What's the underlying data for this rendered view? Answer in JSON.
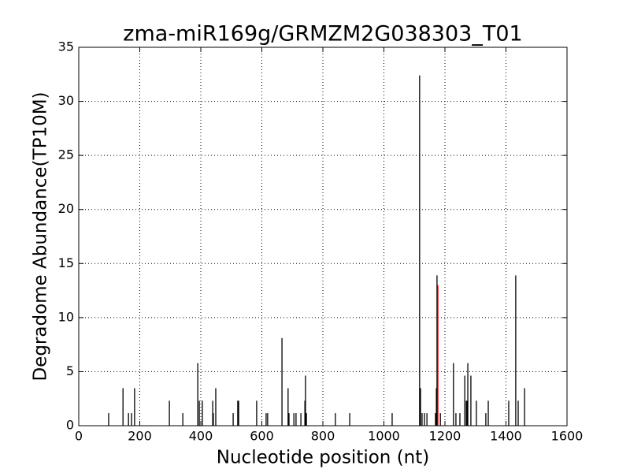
{
  "chart_data": {
    "type": "stem",
    "title": "zma-miR169g/GRMZM2G038303_T01",
    "x_label": "Nucleotide position (nt)",
    "y_label": "Degradome Abundance(TP10M)",
    "xlim": [
      0,
      1600
    ],
    "xticks": [
      0,
      200,
      400,
      600,
      800,
      1000,
      1200,
      1400,
      1600
    ],
    "ylim": [
      0,
      35
    ],
    "yticks": [
      0,
      5,
      10,
      15,
      20,
      25,
      30,
      35
    ],
    "grid": true,
    "series": [
      {
        "color": "#000000",
        "x": [
          98,
          145,
          163,
          173,
          183,
          297,
          341,
          390,
          395,
          405,
          439,
          441,
          449,
          506,
          521,
          524,
          583,
          614,
          619,
          666,
          686,
          689,
          705,
          712,
          728,
          741,
          743,
          746,
          841,
          888,
          1027,
          1117,
          1120,
          1125,
          1133,
          1141,
          1169,
          1172,
          1174,
          1185,
          1228,
          1236,
          1249,
          1265,
          1270,
          1272,
          1275,
          1285,
          1303,
          1334,
          1342,
          1409,
          1432,
          1440,
          1461
        ],
        "values": [
          1.16,
          3.47,
          1.16,
          1.16,
          3.47,
          2.31,
          1.16,
          5.79,
          2.31,
          2.31,
          2.31,
          1.16,
          3.47,
          1.16,
          2.31,
          2.31,
          2.31,
          1.16,
          1.16,
          8.1,
          3.47,
          1.16,
          1.16,
          1.16,
          1.16,
          2.31,
          4.63,
          1.16,
          1.16,
          1.16,
          1.16,
          32.4,
          3.47,
          1.16,
          1.16,
          1.16,
          1.16,
          3.47,
          13.9,
          1.16,
          5.79,
          1.16,
          1.16,
          4.63,
          2.31,
          2.31,
          5.79,
          4.63,
          2.31,
          1.16,
          2.31,
          2.31,
          13.9,
          2.31,
          3.47
        ]
      },
      {
        "color": "#ff0000",
        "x": [
          1177
        ],
        "values": [
          13.0
        ]
      }
    ]
  }
}
